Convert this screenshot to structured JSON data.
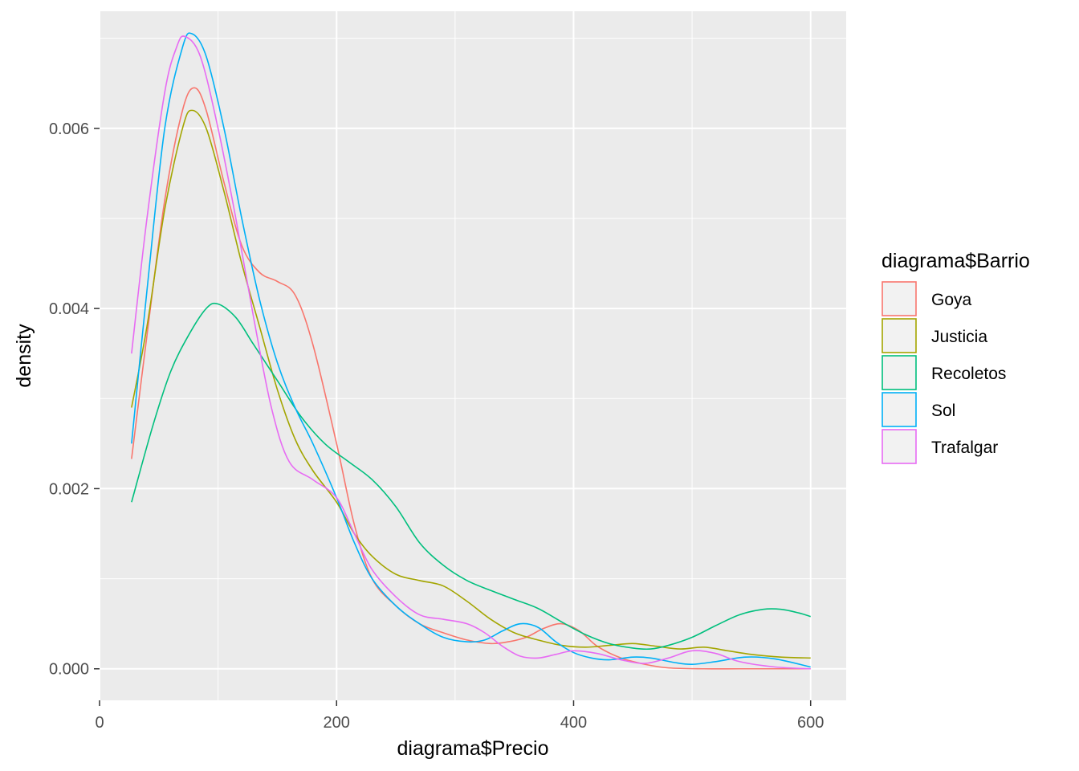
{
  "chart_data": {
    "type": "line",
    "title": "",
    "xlabel": "diagrama$Precio",
    "ylabel": "density",
    "xlim": [
      0,
      630
    ],
    "ylim": [
      -0.00035,
      0.0073
    ],
    "x_ticks": [
      0,
      200,
      400,
      600
    ],
    "x_tick_labels": [
      "0",
      "200",
      "400",
      "600"
    ],
    "y_ticks": [
      0.0,
      0.002,
      0.004,
      0.006
    ],
    "y_tick_labels": [
      "0.000",
      "0.002",
      "0.004",
      "0.006"
    ],
    "grid": true,
    "legend": {
      "title": "diagrama$Barrio",
      "position": "right"
    },
    "series": [
      {
        "name": "Goya",
        "color": "#F8766D",
        "points": [
          [
            27,
            0.00233
          ],
          [
            40,
            0.0037
          ],
          [
            55,
            0.0052
          ],
          [
            70,
            0.0062
          ],
          [
            80,
            0.00645
          ],
          [
            90,
            0.0062
          ],
          [
            105,
            0.0054
          ],
          [
            120,
            0.0047
          ],
          [
            135,
            0.0044
          ],
          [
            150,
            0.0043
          ],
          [
            165,
            0.00415
          ],
          [
            180,
            0.0036
          ],
          [
            200,
            0.0025
          ],
          [
            215,
            0.0016
          ],
          [
            230,
            0.001
          ],
          [
            250,
            0.0007
          ],
          [
            270,
            0.0005
          ],
          [
            290,
            0.0004
          ],
          [
            310,
            0.00032
          ],
          [
            330,
            0.00028
          ],
          [
            345,
            0.0003
          ],
          [
            360,
            0.00035
          ],
          [
            375,
            0.00045
          ],
          [
            390,
            0.0005
          ],
          [
            405,
            0.00042
          ],
          [
            420,
            0.00025
          ],
          [
            440,
            0.00012
          ],
          [
            460,
            5e-05
          ],
          [
            480,
            1e-05
          ],
          [
            510,
            0.0
          ],
          [
            540,
            0.0
          ],
          [
            570,
            0.0
          ],
          [
            600,
            0.0
          ]
        ]
      },
      {
        "name": "Justicia",
        "color": "#A3A500",
        "points": [
          [
            27,
            0.0029
          ],
          [
            40,
            0.0038
          ],
          [
            55,
            0.0051
          ],
          [
            70,
            0.006
          ],
          [
            78,
            0.0062
          ],
          [
            90,
            0.006
          ],
          [
            105,
            0.0053
          ],
          [
            120,
            0.0045
          ],
          [
            135,
            0.0038
          ],
          [
            150,
            0.0031
          ],
          [
            165,
            0.00255
          ],
          [
            180,
            0.0022
          ],
          [
            200,
            0.00185
          ],
          [
            215,
            0.0015
          ],
          [
            230,
            0.00125
          ],
          [
            250,
            0.00105
          ],
          [
            270,
            0.00098
          ],
          [
            290,
            0.00092
          ],
          [
            310,
            0.00075
          ],
          [
            330,
            0.00055
          ],
          [
            350,
            0.0004
          ],
          [
            370,
            0.00032
          ],
          [
            390,
            0.00026
          ],
          [
            410,
            0.00024
          ],
          [
            430,
            0.00026
          ],
          [
            450,
            0.00028
          ],
          [
            470,
            0.00025
          ],
          [
            490,
            0.00022
          ],
          [
            510,
            0.00024
          ],
          [
            530,
            0.0002
          ],
          [
            550,
            0.00016
          ],
          [
            575,
            0.00013
          ],
          [
            600,
            0.00012
          ]
        ]
      },
      {
        "name": "Recoletos",
        "color": "#00BF7D",
        "points": [
          [
            27,
            0.00185
          ],
          [
            45,
            0.0027
          ],
          [
            60,
            0.0033
          ],
          [
            75,
            0.0037
          ],
          [
            90,
            0.004
          ],
          [
            100,
            0.00405
          ],
          [
            115,
            0.0039
          ],
          [
            130,
            0.0036
          ],
          [
            150,
            0.0032
          ],
          [
            170,
            0.0028
          ],
          [
            190,
            0.0025
          ],
          [
            210,
            0.0023
          ],
          [
            230,
            0.0021
          ],
          [
            250,
            0.0018
          ],
          [
            270,
            0.0014
          ],
          [
            290,
            0.00115
          ],
          [
            310,
            0.00098
          ],
          [
            330,
            0.00087
          ],
          [
            350,
            0.00077
          ],
          [
            370,
            0.00067
          ],
          [
            390,
            0.00052
          ],
          [
            410,
            0.00038
          ],
          [
            430,
            0.00028
          ],
          [
            450,
            0.00023
          ],
          [
            465,
            0.00022
          ],
          [
            480,
            0.00026
          ],
          [
            500,
            0.00035
          ],
          [
            520,
            0.00048
          ],
          [
            540,
            0.0006
          ],
          [
            560,
            0.00066
          ],
          [
            575,
            0.00066
          ],
          [
            590,
            0.00062
          ],
          [
            600,
            0.00058
          ]
        ]
      },
      {
        "name": "Sol",
        "color": "#00B0F6",
        "points": [
          [
            27,
            0.0025
          ],
          [
            40,
            0.0042
          ],
          [
            55,
            0.006
          ],
          [
            70,
            0.0069
          ],
          [
            78,
            0.00705
          ],
          [
            90,
            0.0068
          ],
          [
            105,
            0.006
          ],
          [
            120,
            0.005
          ],
          [
            135,
            0.0041
          ],
          [
            150,
            0.0034
          ],
          [
            165,
            0.0029
          ],
          [
            180,
            0.0025
          ],
          [
            200,
            0.0019
          ],
          [
            215,
            0.0014
          ],
          [
            230,
            0.001
          ],
          [
            250,
            0.0007
          ],
          [
            270,
            0.0005
          ],
          [
            290,
            0.00035
          ],
          [
            310,
            0.0003
          ],
          [
            325,
            0.00032
          ],
          [
            340,
            0.00042
          ],
          [
            355,
            0.0005
          ],
          [
            370,
            0.00046
          ],
          [
            385,
            0.0003
          ],
          [
            400,
            0.00018
          ],
          [
            415,
            0.00012
          ],
          [
            430,
            0.0001
          ],
          [
            450,
            0.00013
          ],
          [
            465,
            0.00012
          ],
          [
            485,
            7e-05
          ],
          [
            500,
            5e-05
          ],
          [
            520,
            8e-05
          ],
          [
            545,
            0.00013
          ],
          [
            570,
            0.00011
          ],
          [
            600,
            2e-05
          ]
        ]
      },
      {
        "name": "Trafalgar",
        "color": "#E76BF3",
        "points": [
          [
            27,
            0.0035
          ],
          [
            40,
            0.005
          ],
          [
            55,
            0.0064
          ],
          [
            65,
            0.0069
          ],
          [
            72,
            0.00702
          ],
          [
            85,
            0.0068
          ],
          [
            100,
            0.006
          ],
          [
            115,
            0.005
          ],
          [
            130,
            0.0039
          ],
          [
            145,
            0.0029
          ],
          [
            160,
            0.0023
          ],
          [
            180,
            0.0021
          ],
          [
            200,
            0.0019
          ],
          [
            215,
            0.0015
          ],
          [
            230,
            0.0011
          ],
          [
            250,
            0.0008
          ],
          [
            270,
            0.0006
          ],
          [
            290,
            0.00055
          ],
          [
            310,
            0.0005
          ],
          [
            325,
            0.0004
          ],
          [
            340,
            0.00025
          ],
          [
            355,
            0.00014
          ],
          [
            370,
            0.00012
          ],
          [
            385,
            0.00016
          ],
          [
            400,
            0.0002
          ],
          [
            420,
            0.00017
          ],
          [
            440,
            0.0001
          ],
          [
            460,
            6e-05
          ],
          [
            480,
            0.00012
          ],
          [
            500,
            0.0002
          ],
          [
            520,
            0.00017
          ],
          [
            540,
            8e-05
          ],
          [
            570,
            2e-05
          ],
          [
            600,
            0.0
          ]
        ]
      }
    ]
  }
}
